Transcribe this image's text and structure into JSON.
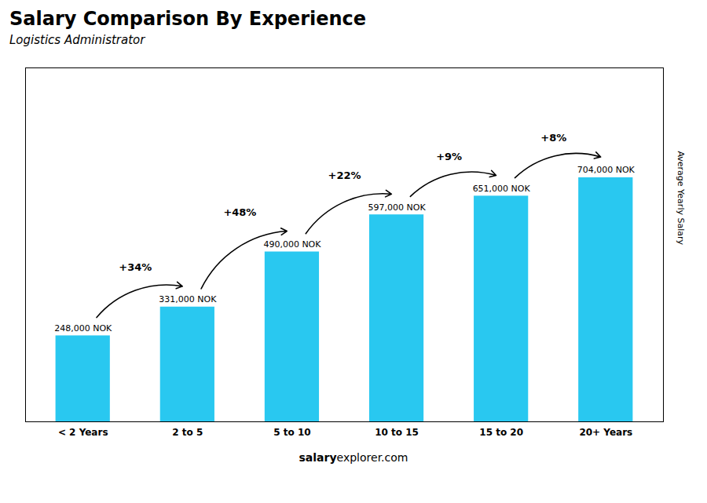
{
  "chart_data": {
    "type": "bar",
    "title": "Salary Comparison By Experience",
    "subtitle": "Logistics Administrator",
    "y_label": "Average Yearly Salary",
    "categories": [
      "< 2 Years",
      "2 to 5",
      "5 to 10",
      "10 to 15",
      "15 to 20",
      "20+ Years"
    ],
    "values": [
      248000,
      331000,
      490000,
      597000,
      651000,
      704000
    ],
    "value_labels": [
      "248,000 NOK",
      "331,000 NOK",
      "490,000 NOK",
      "597,000 NOK",
      "651,000 NOK",
      "704,000 NOK"
    ],
    "data_labels": true,
    "color": "#29c8f0",
    "ylim": [
      0,
      1020800
    ],
    "tick_labels": "x",
    "grid": false,
    "annotations": [
      {
        "text": "+34%",
        "from": "< 2 Years",
        "to": "2 to 5"
      },
      {
        "text": "+48%",
        "from": "2 to 5",
        "to": "5 to 10"
      },
      {
        "text": "+22%",
        "from": "5 to 10",
        "to": "10 to 15"
      },
      {
        "text": "+9%",
        "from": "10 to 15",
        "to": "15 to 20"
      },
      {
        "text": "+8%",
        "from": "15 to 20",
        "to": "20+ Years"
      }
    ],
    "caption": [
      "salary",
      "explorer.com"
    ]
  }
}
